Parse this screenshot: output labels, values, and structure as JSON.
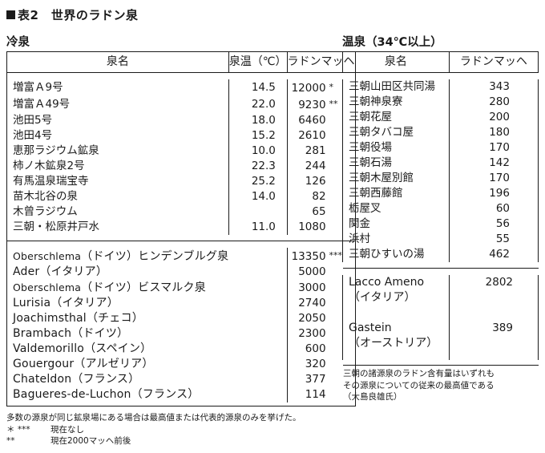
{
  "title": "表2　世界のラドン泉",
  "cold": {
    "section_title": "冷泉",
    "headers": [
      "泉名",
      "泉温（℃）",
      "ラドンマッヘ"
    ],
    "japan_rows": [
      {
        "name": "増富Ａ9号",
        "temp": "14.5",
        "rad": "12000",
        "mark": "*"
      },
      {
        "name": "増富Ａ49号",
        "temp": "22.0",
        "rad": "9230",
        "mark": "**"
      },
      {
        "name": "池田5号",
        "temp": "18.0",
        "rad": "6460",
        "mark": ""
      },
      {
        "name": "池田4号",
        "temp": "15.2",
        "rad": "2610",
        "mark": ""
      },
      {
        "name": "恵那ラジウム鉱泉",
        "temp": "10.0",
        "rad": "281",
        "mark": ""
      },
      {
        "name": "柿ノ木鉱泉2号",
        "temp": "22.3",
        "rad": "244",
        "mark": ""
      },
      {
        "name": "有馬温泉瑞宝寺",
        "temp": "25.2",
        "rad": "126",
        "mark": ""
      },
      {
        "name": "苗木北谷の泉",
        "temp": "14.0",
        "rad": "82",
        "mark": ""
      },
      {
        "name": "木曾ラジウム",
        "temp": "",
        "rad": "65",
        "mark": ""
      },
      {
        "name": "三朝・松原井戸水",
        "temp": "11.0",
        "rad": "1080",
        "mark": ""
      }
    ],
    "foreign_rows": [
      {
        "name_a": "Oberschlema",
        "name_b": "（ドイツ）ヒンデンブルグ泉",
        "rad": "13350",
        "mark": "***"
      },
      {
        "name_a": "Ader",
        "name_b": "（イタリア）",
        "rad": "5000",
        "mark": ""
      },
      {
        "name_a": "Oberschlema",
        "name_b": "（ドイツ）ビスマルク泉",
        "rad": "3000",
        "mark": ""
      },
      {
        "name_a": "Lurisia",
        "name_b": "（イタリア）",
        "rad": "2740",
        "mark": ""
      },
      {
        "name_a": "Joachimsthal",
        "name_b": "（チェコ）",
        "rad": "2050",
        "mark": ""
      },
      {
        "name_a": "Brambach",
        "name_b": "（ドイツ）",
        "rad": "2300",
        "mark": ""
      },
      {
        "name_a": "Valdemorillo",
        "name_b": "（スペイン）",
        "rad": "600",
        "mark": ""
      },
      {
        "name_a": "Gouergour",
        "name_b": "（アルゼリア）",
        "rad": "320",
        "mark": ""
      },
      {
        "name_a": "Chateldon",
        "name_b": "（フランス）",
        "rad": "377",
        "mark": ""
      },
      {
        "name_a": "Bagueres-de-Luchon",
        "name_b": "（フランス）",
        "rad": "114",
        "mark": ""
      }
    ]
  },
  "hot": {
    "section_title": "温泉（34℃以上）",
    "headers": [
      "泉名",
      "ラドンマッヘ"
    ],
    "japan_rows": [
      {
        "name": "三朝山田区共同湯",
        "rad": "343"
      },
      {
        "name": "三朝神泉寮",
        "rad": "280"
      },
      {
        "name": "三朝花屋",
        "rad": "200"
      },
      {
        "name": "三朝タバコ屋",
        "rad": "180"
      },
      {
        "name": "三朝役場",
        "rad": "170"
      },
      {
        "name": "三朝石湯",
        "rad": "142"
      },
      {
        "name": "三朝木屋別館",
        "rad": "170"
      },
      {
        "name": "三朝西藤館",
        "rad": "196"
      },
      {
        "name": "栃屋叉",
        "rad": "60"
      },
      {
        "name": "関金",
        "rad": "56"
      },
      {
        "name": "浜村",
        "rad": "55"
      },
      {
        "name": "三朝ひすいの湯",
        "rad": "462"
      }
    ],
    "foreign_rows": [
      {
        "name_a": "Lacco Ameno",
        "name_b": "（イタリア）",
        "rad": "2802"
      },
      {
        "name_a": "Gastein",
        "name_b": "（オーストリア）",
        "rad": "389"
      }
    ],
    "note": [
      "三朝の諸源泉のラドン含有量はいずれも",
      "その源泉についての従来の最高値である",
      "（大島良雄氏）"
    ]
  },
  "footnotes": {
    "line1": "多数の源泉が同じ鉱泉場にある場合は最高値または代表的源泉のみを挙げた。",
    "line2_key": "＊ ***",
    "line2_val": "現在なし",
    "line3_key": "**",
    "line3_val": "現在2000マッヘ前後"
  }
}
